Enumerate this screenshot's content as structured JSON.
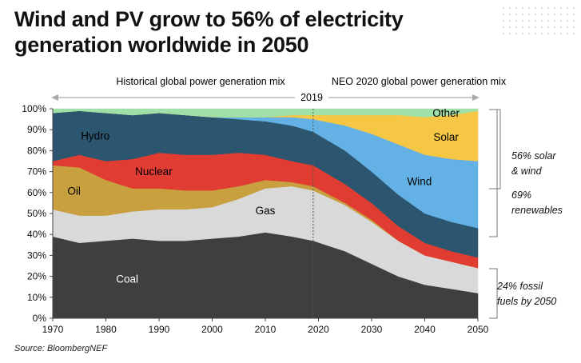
{
  "title": "Wind and PV grow to 56% of electricity generation worldwide in 2050",
  "source": "Source: BloombergNEF",
  "header": {
    "historical": "Historical global power generation mix",
    "forecast": "NEO 2020 global power generation mix",
    "divider_year": "2019"
  },
  "annotations": [
    {
      "id": "solar_wind",
      "lines": [
        "56% solar",
        "& wind"
      ]
    },
    {
      "id": "renewables",
      "lines": [
        "69%",
        "renewables"
      ]
    },
    {
      "id": "fossil",
      "lines": [
        "24% fossil",
        "fuels by 2050"
      ]
    }
  ],
  "chart_data": {
    "type": "area",
    "stacked": true,
    "x": [
      1970,
      1975,
      1980,
      1985,
      1990,
      1995,
      2000,
      2005,
      2010,
      2015,
      2019,
      2025,
      2030,
      2035,
      2040,
      2045,
      2050
    ],
    "xlim": [
      1970,
      2050
    ],
    "ylim": [
      0,
      100
    ],
    "y_unit": "%",
    "xticks": [
      "1970",
      "1980",
      "1990",
      "2000",
      "2010",
      "2020",
      "2030",
      "2040",
      "2050"
    ],
    "yticks": [
      "0%",
      "10%",
      "20%",
      "30%",
      "40%",
      "50%",
      "60%",
      "70%",
      "80%",
      "90%",
      "100%"
    ],
    "divider_x": 2019,
    "series": [
      {
        "name": "Coal",
        "color": "#3f3f3f",
        "label_color": "#ffffff",
        "values": [
          39,
          36,
          37,
          38,
          37,
          37,
          38,
          39,
          41,
          39,
          37,
          32,
          26,
          20,
          16,
          14,
          12
        ]
      },
      {
        "name": "Gas",
        "color": "#d9d9d9",
        "label_color": "#000000",
        "values": [
          13,
          13,
          12,
          13,
          15,
          15,
          15,
          18,
          21,
          24,
          24,
          22,
          20,
          17,
          14,
          13,
          12
        ]
      },
      {
        "name": "Oil",
        "color": "#c9a03f",
        "label_color": "#000000",
        "values": [
          21,
          23,
          17,
          11,
          10,
          9,
          8,
          6,
          4,
          2,
          2,
          1,
          1,
          0,
          0,
          0,
          0
        ]
      },
      {
        "name": "Nuclear",
        "color": "#e03c31",
        "label_color": "#000000",
        "values": [
          2,
          6,
          9,
          14,
          17,
          17,
          17,
          16,
          12,
          10,
          10,
          9,
          8,
          7,
          6,
          5,
          5
        ]
      },
      {
        "name": "Hydro",
        "color": "#2c5670",
        "label_color": "#000000",
        "values": [
          23,
          21,
          23,
          21,
          19,
          19,
          18,
          16,
          16,
          17,
          16,
          16,
          15,
          15,
          14,
          14,
          14
        ]
      },
      {
        "name": "Wind",
        "color": "#63b1e5",
        "label_color": "#000000",
        "values": [
          0,
          0,
          0,
          0,
          0,
          0,
          0,
          1,
          2,
          4,
          6,
          12,
          18,
          24,
          28,
          30,
          32
        ]
      },
      {
        "name": "Solar",
        "color": "#f6c744",
        "label_color": "#000000",
        "values": [
          0,
          0,
          0,
          0,
          0,
          0,
          0,
          0,
          0,
          1,
          2,
          5,
          9,
          14,
          18,
          21,
          24
        ]
      },
      {
        "name": "Other",
        "color": "#9fe0a8",
        "label_color": "#000000",
        "values": [
          2,
          1,
          2,
          3,
          2,
          3,
          4,
          4,
          4,
          3,
          3,
          3,
          3,
          3,
          4,
          3,
          1
        ]
      }
    ]
  }
}
